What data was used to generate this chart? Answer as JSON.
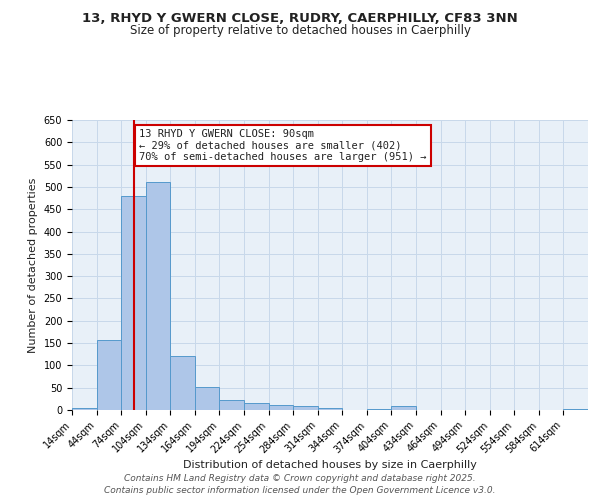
{
  "title_line1": "13, RHYD Y GWERN CLOSE, RUDRY, CAERPHILLY, CF83 3NN",
  "title_line2": "Size of property relative to detached houses in Caerphilly",
  "xlabel": "Distribution of detached houses by size in Caerphilly",
  "ylabel": "Number of detached properties",
  "bin_labels": [
    "14sqm",
    "44sqm",
    "74sqm",
    "104sqm",
    "134sqm",
    "164sqm",
    "194sqm",
    "224sqm",
    "254sqm",
    "284sqm",
    "314sqm",
    "344sqm",
    "374sqm",
    "404sqm",
    "434sqm",
    "464sqm",
    "494sqm",
    "524sqm",
    "554sqm",
    "584sqm",
    "614sqm"
  ],
  "bar_values": [
    4,
    158,
    480,
    510,
    122,
    52,
    22,
    15,
    12,
    8,
    5,
    0,
    3,
    8,
    0,
    0,
    0,
    0,
    0,
    0,
    2
  ],
  "bar_color": "#aec6e8",
  "bar_edge_color": "#5599cc",
  "vline_x": 90,
  "vline_color": "#cc0000",
  "annotation_line1": "13 RHYD Y GWERN CLOSE: 90sqm",
  "annotation_line2": "← 29% of detached houses are smaller (402)",
  "annotation_line3": "70% of semi-detached houses are larger (951) →",
  "annotation_box_color": "#ffffff",
  "annotation_box_edge": "#cc0000",
  "ylim": [
    0,
    650
  ],
  "yticks": [
    0,
    50,
    100,
    150,
    200,
    250,
    300,
    350,
    400,
    450,
    500,
    550,
    600,
    650
  ],
  "grid_color": "#c8d8ea",
  "background_color": "#e8f0f8",
  "footer_line1": "Contains HM Land Registry data © Crown copyright and database right 2025.",
  "footer_line2": "Contains public sector information licensed under the Open Government Licence v3.0.",
  "font_color": "#222222",
  "title_fontsize": 9.5,
  "subtitle_fontsize": 8.5,
  "axis_label_fontsize": 8,
  "tick_fontsize": 7,
  "annotation_fontsize": 7.5,
  "footer_fontsize": 6.5
}
